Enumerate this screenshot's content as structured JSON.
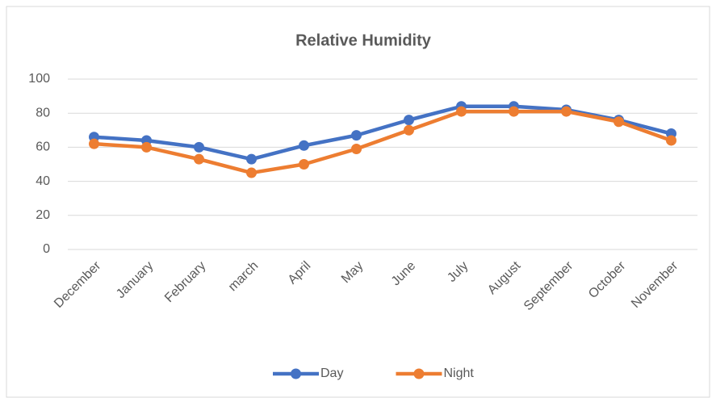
{
  "chart_data": {
    "type": "line",
    "title": "Relative Humidity",
    "categories": [
      "December",
      "January",
      "February",
      "march",
      "April",
      "May",
      "June",
      "July",
      "August",
      "September",
      "October",
      "November"
    ],
    "series": [
      {
        "name": "Day",
        "color": "#4472c4",
        "values": [
          66,
          64,
          60,
          53,
          61,
          67,
          76,
          84,
          84,
          82,
          76,
          68
        ]
      },
      {
        "name": "Night",
        "color": "#ed7d31",
        "values": [
          62,
          60,
          53,
          45,
          50,
          59,
          70,
          81,
          81,
          81,
          75,
          64
        ]
      }
    ],
    "ylim": [
      0,
      100
    ],
    "yticks": [
      0,
      20,
      40,
      60,
      80,
      100
    ],
    "grid": true,
    "legend": "bottom"
  }
}
